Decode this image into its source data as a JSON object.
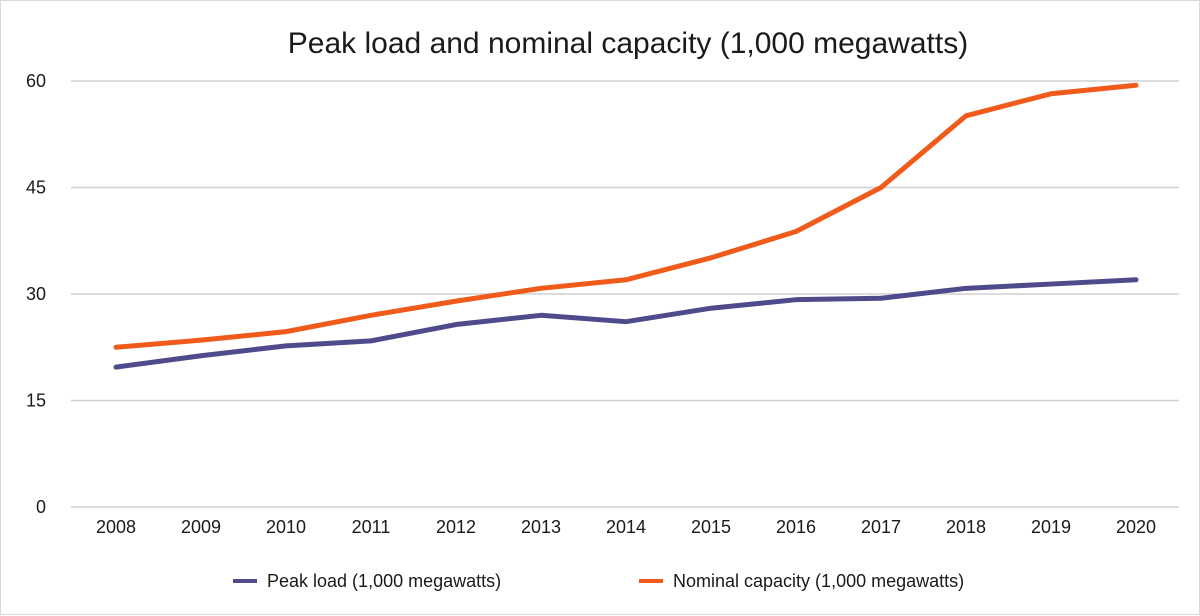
{
  "chart_data": {
    "type": "line",
    "title": "Peak load and nominal capacity (1,000 megawatts)",
    "xlabel": "",
    "ylabel": "",
    "categories": [
      "2008",
      "2009",
      "2010",
      "2011",
      "2012",
      "2013",
      "2014",
      "2015",
      "2016",
      "2017",
      "2018",
      "2019",
      "2020"
    ],
    "ylim": [
      0,
      60
    ],
    "yticks": [
      0,
      15,
      30,
      45,
      60
    ],
    "grid": true,
    "legend_position": "bottom",
    "series": [
      {
        "name": "Peak load (1,000 megawatts)",
        "color": "#4f4a8c",
        "values": [
          19.7,
          21.3,
          22.7,
          23.4,
          25.7,
          27.0,
          26.1,
          28.0,
          29.2,
          29.4,
          30.8,
          31.4,
          32.0
        ]
      },
      {
        "name": "Nominal capacity (1,000 megawatts)",
        "color": "#f05a1a",
        "values": [
          22.5,
          23.5,
          24.7,
          27.0,
          29.0,
          30.8,
          32.0,
          35.1,
          38.8,
          45.0,
          55.1,
          58.2,
          59.4
        ]
      }
    ]
  }
}
